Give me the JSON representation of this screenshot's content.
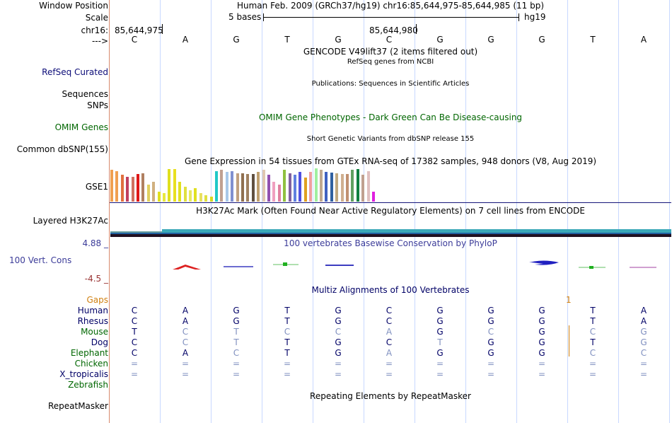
{
  "header": {
    "window_position_label": "Window Position",
    "window_position_value": "Human Feb. 2009 (GRCh37/hg19)   chr16:85,644,975-85,644,985 (11 bp)",
    "scale_label": "Scale",
    "scale_text": "5 bases",
    "assembly": "hg19",
    "chrom_label": "chr16:",
    "coord_1": "85,644,975",
    "coord_2": "85,644,980",
    "arrow_label": "--->"
  },
  "bases": [
    "C",
    "A",
    "G",
    "T",
    "G",
    "C",
    "G",
    "G",
    "G",
    "T",
    "A"
  ],
  "tracks": {
    "gencode_title": "GENCODE V49lift37 (2 items filtered out)",
    "refseq_subtitle": "RefSeq genes from NCBI",
    "refseq_label": "RefSeq Curated",
    "publications_subtitle": "Publications: Sequences in Scientific Articles",
    "sequences_label": "Sequences",
    "snps_label": "SNPs",
    "omim_title": "OMIM Gene Phenotypes - Dark Green Can Be Disease-causing",
    "omim_label": "OMIM Genes",
    "dbsnp_subtitle": "Short Genetic Variants from dbSNP release 155",
    "dbsnp_label": "Common dbSNP(155)",
    "gtex_title": "Gene Expression in 54 tissues from GTEx RNA-seq of 17382 samples, 948 donors (V8, Aug 2019)",
    "gtex_label": "GSE1",
    "h3k27ac_title": "H3K27Ac Mark (Often Found Near Active Regulatory Elements) on 7 cell lines from ENCODE",
    "h3k27ac_label": "Layered H3K27Ac",
    "phylop_max": "4.88 _",
    "phylop_title": "100 vertebrates Basewise Conservation by PhyloP",
    "phylop_label": "100 Vert. Cons",
    "phylop_min": "-4.5 _",
    "multiz_title": "Multiz Alignments of 100 Vertebrates",
    "gaps_label": "Gaps",
    "gap_marker": "1",
    "repeat_title": "Repeating Elements by RepeatMasker",
    "repeat_label": "RepeatMasker"
  },
  "gtex_bars": [
    {
      "value": 0.95,
      "color": "#f0a050"
    },
    {
      "value": 0.92,
      "color": "#f0a050"
    },
    {
      "value": 0.8,
      "color": "#e07040"
    },
    {
      "value": 0.75,
      "color": "#c04060"
    },
    {
      "value": 0.75,
      "color": "#d07060"
    },
    {
      "value": 0.82,
      "color": "#e01818"
    },
    {
      "value": 0.85,
      "color": "#b08060"
    },
    {
      "value": 0.5,
      "color": "#e0d060"
    },
    {
      "value": 0.6,
      "color": "#d0b080"
    },
    {
      "value": 0.3,
      "color": "#e0e020"
    },
    {
      "value": 0.25,
      "color": "#e8e840"
    },
    {
      "value": 0.97,
      "color": "#e0e020"
    },
    {
      "value": 0.97,
      "color": "#e8e020"
    },
    {
      "value": 0.6,
      "color": "#e0e020"
    },
    {
      "value": 0.45,
      "color": "#e0e040"
    },
    {
      "value": 0.35,
      "color": "#e8e860"
    },
    {
      "value": 0.4,
      "color": "#e0e020"
    },
    {
      "value": 0.25,
      "color": "#e8e060"
    },
    {
      "value": 0.2,
      "color": "#e0e040"
    },
    {
      "value": 0.15,
      "color": "#d8d820"
    },
    {
      "value": 0.92,
      "color": "#20c8c8"
    },
    {
      "value": 0.95,
      "color": "#c0a090"
    },
    {
      "value": 0.9,
      "color": "#a8c8e8"
    },
    {
      "value": 0.92,
      "color": "#8090d0"
    },
    {
      "value": 0.85,
      "color": "#c0a080"
    },
    {
      "value": 0.85,
      "color": "#907050"
    },
    {
      "value": 0.82,
      "color": "#a08060"
    },
    {
      "value": 0.82,
      "color": "#605040"
    },
    {
      "value": 0.9,
      "color": "#c0a070"
    },
    {
      "value": 0.95,
      "color": "#e0c8b0"
    },
    {
      "value": 0.8,
      "color": "#9050b0"
    },
    {
      "value": 0.6,
      "color": "#f0a0c0"
    },
    {
      "value": 0.5,
      "color": "#e080a0"
    },
    {
      "value": 0.95,
      "color": "#90c040"
    },
    {
      "value": 0.85,
      "color": "#8060a0"
    },
    {
      "value": 0.8,
      "color": "#6080e0"
    },
    {
      "value": 0.9,
      "color": "#5050e0"
    },
    {
      "value": 0.72,
      "color": "#e0a020"
    },
    {
      "value": 0.9,
      "color": "#f0a0a0"
    },
    {
      "value": 1.0,
      "color": "#a0f0a0"
    },
    {
      "value": 0.95,
      "color": "#c0a890"
    },
    {
      "value": 0.9,
      "color": "#4060c0"
    },
    {
      "value": 0.88,
      "color": "#3060a0"
    },
    {
      "value": 0.85,
      "color": "#c0a880"
    },
    {
      "value": 0.82,
      "color": "#d0b090"
    },
    {
      "value": 0.82,
      "color": "#c09070"
    },
    {
      "value": 0.95,
      "color": "#60a060"
    },
    {
      "value": 0.98,
      "color": "#108040"
    },
    {
      "value": 0.8,
      "color": "#c0a090"
    },
    {
      "value": 0.92,
      "color": "#e0c0c0"
    },
    {
      "value": 0.3,
      "color": "#e020e0"
    }
  ],
  "alignment": [
    {
      "species": "Human",
      "color": "#000066",
      "bases": [
        "C",
        "A",
        "G",
        "T",
        "G",
        "C",
        "G",
        "G",
        "G",
        "T",
        "A"
      ]
    },
    {
      "species": "Rhesus",
      "color": "#000066",
      "bases": [
        "C",
        "A",
        "G",
        "T",
        "G",
        "C",
        "G",
        "G",
        "G",
        "T",
        "A"
      ]
    },
    {
      "species": "Mouse",
      "color": "#006600",
      "bases": [
        "T",
        "C",
        "T",
        "C",
        "C",
        "A",
        "G",
        "C",
        "G",
        "C",
        "G"
      ]
    },
    {
      "species": "Dog",
      "color": "#000066",
      "bases": [
        "C",
        "C",
        "T",
        "T",
        "G",
        "C",
        "T",
        "G",
        "G",
        "T",
        "G"
      ]
    },
    {
      "species": "Elephant",
      "color": "#006600",
      "bases": [
        "C",
        "A",
        "C",
        "T",
        "G",
        "A",
        "G",
        "G",
        "G",
        "C",
        "C"
      ]
    },
    {
      "species": "Chicken",
      "color": "#006600",
      "bases": [
        "=",
        "=",
        "=",
        "=",
        "=",
        "=",
        "=",
        "=",
        "=",
        "=",
        "="
      ]
    },
    {
      "species": "X_tropicalis",
      "color": "#000066",
      "bases": [
        "=",
        "=",
        "=",
        "=",
        "=",
        "=",
        "=",
        "=",
        "=",
        "=",
        "="
      ]
    },
    {
      "species": "Zebrafish",
      "color": "#006600",
      "bases": [
        "",
        "",
        "",
        "",
        "",
        "",
        "",
        "",
        "",
        "",
        ""
      ]
    }
  ],
  "alignment_highlight": {
    "Mouse": [
      false,
      true,
      true,
      true,
      true,
      true,
      false,
      true,
      false,
      true,
      true
    ],
    "Dog": [
      false,
      true,
      true,
      false,
      false,
      false,
      true,
      false,
      false,
      false,
      true
    ],
    "Elephant": [
      false,
      false,
      true,
      false,
      false,
      true,
      false,
      false,
      false,
      true,
      true
    ]
  },
  "colors": {
    "label_blue": "#000066",
    "label_green": "#006600",
    "phylop_blue": "#3c3c99",
    "phylop_red": "#993333",
    "gaps_orange": "#d08010",
    "mismatch": "#8090c0",
    "refseq_blue": "#0c0c78"
  }
}
